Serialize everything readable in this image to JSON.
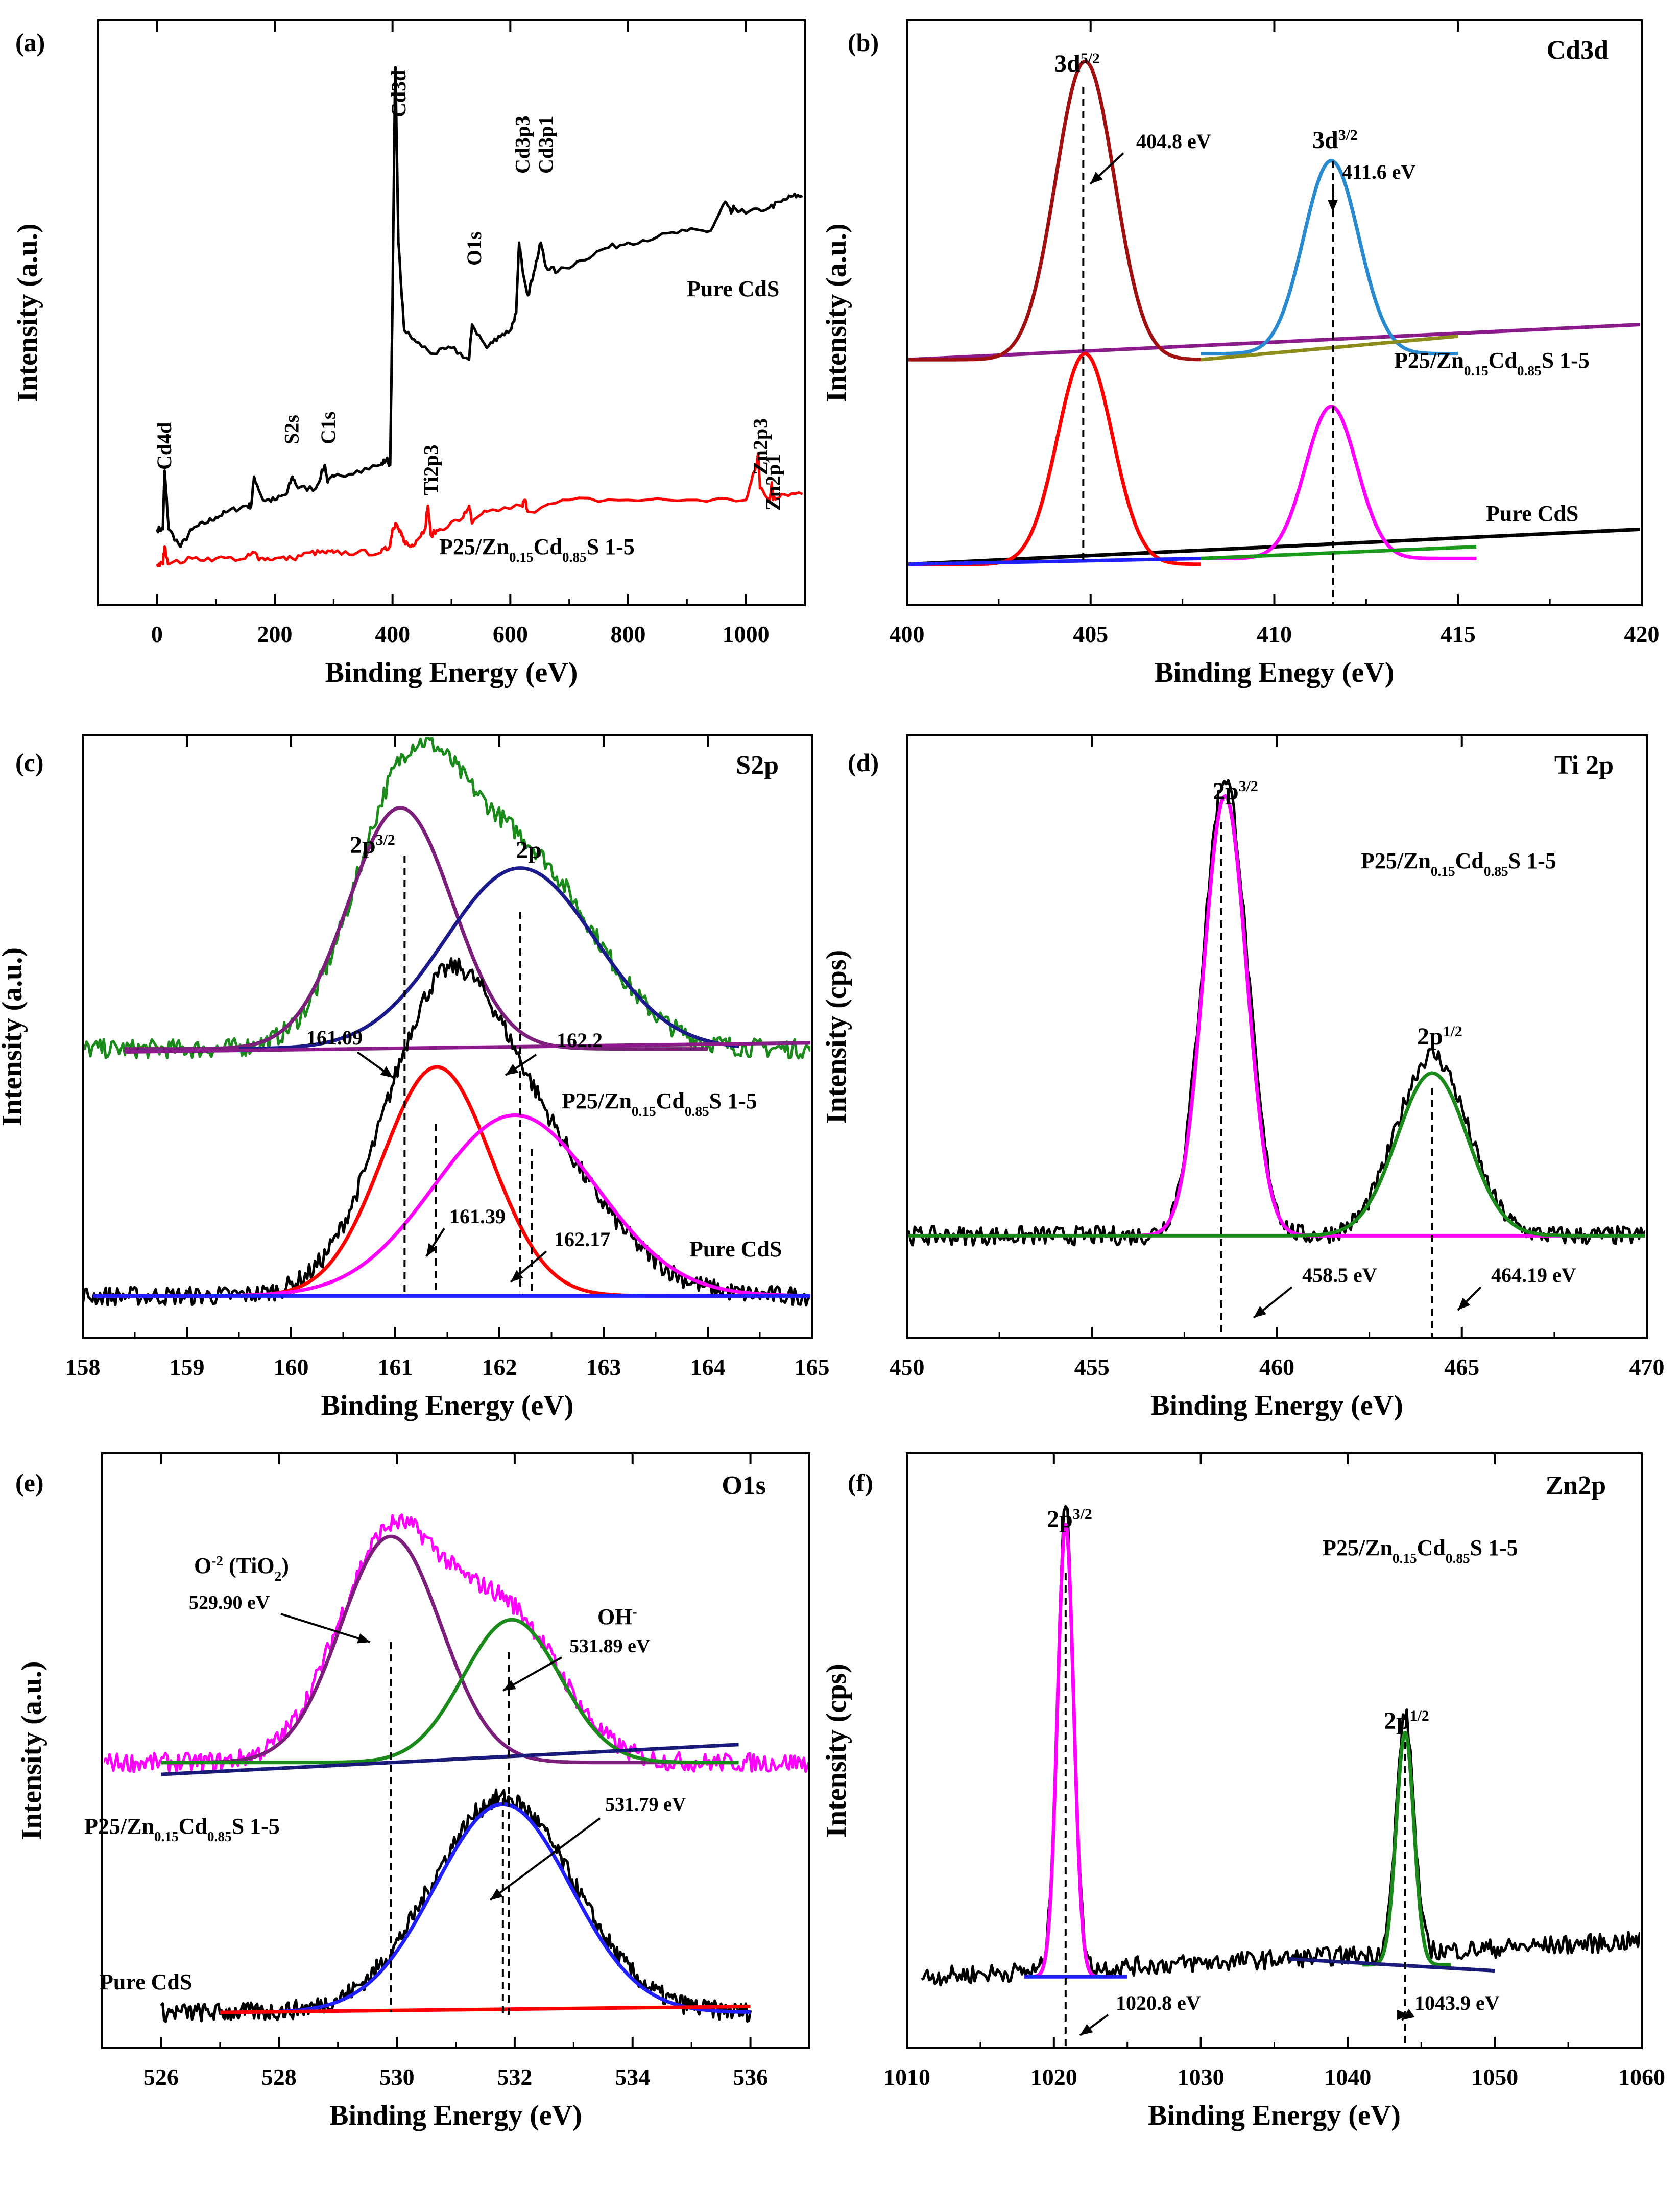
{
  "chart_data": [
    {
      "type": "line",
      "panel_label": "(a)",
      "title": "",
      "xlabel": "Binding Energy (eV)",
      "ylabel": "Intensity (a.u.)",
      "xlim": [
        -100,
        1100
      ],
      "ylim": [
        0,
        100
      ],
      "xticks": [
        "0",
        "200",
        "400",
        "600",
        "800",
        "1000"
      ],
      "xtick_values": [
        0,
        200,
        400,
        600,
        800,
        1000
      ],
      "series": [
        {
          "name": "Pure CdS",
          "color": "#000000",
          "x": [
            0,
            10,
            13,
            20,
            40,
            60,
            80,
            100,
            120,
            150,
            160,
            165,
            180,
            200,
            220,
            230,
            240,
            270,
            285,
            290,
            300,
            340,
            380,
            390,
            396,
            400,
            404,
            405,
            406,
            410,
            415,
            420,
            440,
            470,
            500,
            530,
            535,
            560,
            580,
            600,
            610,
            615,
            620,
            630,
            640,
            652,
            660,
            680,
            720,
            760,
            800,
            850,
            900,
            940,
            965,
            975,
            980,
            1000,
            1040,
            1060,
            1080,
            1096
          ],
          "y": [
            13,
            13,
            23,
            13,
            10,
            13,
            14,
            15,
            16,
            17,
            17,
            22,
            18,
            18,
            19,
            22,
            20,
            20,
            24,
            21,
            22,
            23,
            24,
            25,
            24,
            52,
            88,
            92,
            86,
            62,
            54,
            47,
            45,
            43,
            44,
            42,
            48,
            44,
            46,
            47,
            50,
            62,
            58,
            53,
            57,
            62,
            58,
            57,
            59,
            61,
            62,
            63,
            64,
            64,
            69,
            67,
            68,
            67,
            68,
            69,
            70,
            70
          ]
        },
        {
          "name": "P25/Zn0.15Cd0.85S 1-5",
          "color": "#ff0000",
          "x": [
            0,
            10,
            13,
            20,
            60,
            100,
            150,
            165,
            175,
            200,
            230,
            260,
            285,
            300,
            340,
            380,
            395,
            400,
            405,
            410,
            415,
            420,
            430,
            440,
            455,
            460,
            465,
            480,
            520,
            530,
            535,
            560,
            620,
            625,
            630,
            700,
            800,
            900,
            1000,
            1018,
            1021,
            1024,
            1040,
            1044,
            1046,
            1060,
            1096
          ],
          "y": [
            7,
            7,
            10,
            7,
            8,
            8,
            8,
            9,
            8,
            8,
            8,
            9,
            9,
            9,
            9,
            9,
            10,
            13,
            14,
            13,
            12,
            11,
            10,
            11,
            13,
            17,
            12,
            13,
            15,
            17,
            14,
            16,
            17,
            18,
            16,
            18,
            18,
            18,
            18,
            24,
            26,
            20,
            18,
            21,
            18,
            19,
            19
          ]
        }
      ],
      "annotations": [
        {
          "text": "Cd4d",
          "x": 12
        },
        {
          "text": "S2s",
          "x": 228
        },
        {
          "text": "C1s",
          "x": 290
        },
        {
          "text": "Cd3d",
          "x": 405
        },
        {
          "text": "Ti2p3",
          "x": 460
        },
        {
          "text": "O1s",
          "x": 533
        },
        {
          "text": "Cd3p3",
          "x": 616
        },
        {
          "text": "Cd3p1",
          "x": 652
        },
        {
          "text": "Zn2p3",
          "x": 1021
        },
        {
          "text": "Zn2p1",
          "x": 1044
        }
      ],
      "series_labels": [
        "Pure CdS",
        "P25/Zn",
        "0.15",
        "Cd",
        "0.85",
        "S 1-5"
      ]
    },
    {
      "type": "line",
      "panel_label": "(b)",
      "title": "Cd3d",
      "xlabel": "Binding Enegy (eV)",
      "ylabel": "Intensity (a.u.)",
      "xlim": [
        400,
        420
      ],
      "ylim": [
        0,
        100
      ],
      "xticks": [
        "400",
        "405",
        "410",
        "415",
        "420"
      ],
      "xtick_values": [
        400,
        405,
        410,
        415,
        420
      ],
      "peaks": [
        {
          "label": "3d",
          "label_sup": "5/2",
          "center": 404.8,
          "value_label": "404.8 eV"
        },
        {
          "label": "3d",
          "label_sup": "3/2",
          "center": 411.6,
          "value_label": "411.6 eV"
        }
      ],
      "series_labels": [
        "P25/Zn",
        "0.15",
        "Cd",
        "0.85",
        "S 1-5",
        "Pure CdS"
      ],
      "series": [
        {
          "name": "P25 composite baseline",
          "color": "#8b1a8b",
          "start": 400,
          "end": 420,
          "base_start": 42,
          "base_end": 48
        },
        {
          "name": "P25 composite 3d5/2 fit",
          "color": "#a01010",
          "center": 404.85,
          "height": 51,
          "sigma": 0.8,
          "base": 42,
          "start": 400,
          "end": 408
        },
        {
          "name": "P25 composite 3d3/2 fit",
          "color": "#2a8ad0",
          "center": 411.55,
          "height": 33,
          "sigma": 0.75,
          "base": 43,
          "start": 408,
          "end": 415
        },
        {
          "name": "P25 composite background",
          "color": "#8c8c1a",
          "start": 408,
          "end": 415,
          "base_start": 42,
          "base_end": 46
        },
        {
          "name": "Pure CdS baseline",
          "color": "#000000",
          "start": 400,
          "end": 420,
          "base_start": 7,
          "base_end": 13
        },
        {
          "name": "Pure CdS 3d5/2 fit",
          "color": "#ff0000",
          "center": 404.85,
          "height": 36,
          "sigma": 0.75,
          "base": 7,
          "start": 400,
          "end": 408
        },
        {
          "name": "Pure CdS 3d3/2 fit",
          "color": "#ff00ff",
          "center": 411.55,
          "height": 26,
          "sigma": 0.7,
          "base": 8,
          "start": 408,
          "end": 415.5
        },
        {
          "name": "Pure CdS background",
          "color": "#2020ff",
          "start": 400,
          "end": 408,
          "base_start": 7,
          "base_end": 8
        },
        {
          "name": "Pure CdS background 2",
          "color": "#1a9a1a",
          "start": 408,
          "end": 415.5,
          "base_start": 8,
          "base_end": 10
        }
      ]
    },
    {
      "type": "line",
      "panel_label": "(c)",
      "title": "S2p",
      "xlabel": "Binding Energy (eV)",
      "ylabel": "Intensity (a.u.)",
      "xlim": [
        158,
        165
      ],
      "ylim": [
        0,
        100
      ],
      "xticks": [
        "158",
        "159",
        "160",
        "161",
        "162",
        "163",
        "164",
        "165"
      ],
      "xtick_values": [
        158,
        159,
        160,
        161,
        162,
        163,
        164,
        165
      ],
      "peaks": [
        {
          "label": "2p",
          "label_sup": "3/2",
          "center": 161.09,
          "value_label": "161.09"
        },
        {
          "label": "2p",
          "label_sup": "",
          "center": 162.2,
          "value_label": "162.2"
        },
        {
          "label": "",
          "label_sup": "",
          "center": 161.39,
          "value_label": "161.39"
        },
        {
          "label": "",
          "label_sup": "",
          "center": 162.17,
          "value_label": "162.17"
        }
      ],
      "series_labels": [
        "P25/Zn",
        "0.15",
        "Cd",
        "0.85",
        "S 1-5",
        "Pure CdS"
      ],
      "series": [
        {
          "name": "P25 composite raw",
          "color": "#1a8a1a",
          "noisy": true,
          "start": 158,
          "end": 165,
          "base": 48,
          "peaks": [
            [
              161.1,
              40,
              0.5
            ],
            [
              162.2,
              32,
              0.7
            ]
          ]
        },
        {
          "name": "P25 composite peak 1",
          "color": "#7b1f7b",
          "center": 161.05,
          "height": 40,
          "sigma": 0.5,
          "base": 48,
          "start": 158.4,
          "end": 164
        },
        {
          "name": "P25 composite peak 2",
          "color": "#1a1a8a",
          "center": 162.2,
          "height": 30,
          "sigma": 0.72,
          "base": 48,
          "start": 159.5,
          "end": 164.3
        },
        {
          "name": "P25 composite baseline",
          "color": "#8b1a8b",
          "start": 158.4,
          "end": 165,
          "base_start": 47.5,
          "base_end": 49
        },
        {
          "name": "Pure CdS raw",
          "color": "#000000",
          "noisy": true,
          "start": 158,
          "end": 165,
          "base": 7,
          "peaks": [
            [
              161.4,
              38,
              0.55
            ],
            [
              162.2,
              26,
              0.75
            ]
          ]
        },
        {
          "name": "Pure CdS peak 1",
          "color": "#ff0000",
          "center": 161.4,
          "height": 38,
          "sigma": 0.52,
          "base": 7,
          "start": 158.1,
          "end": 164.5
        },
        {
          "name": "Pure CdS peak 2",
          "color": "#ff00ff",
          "center": 162.15,
          "height": 30,
          "sigma": 0.78,
          "base": 7,
          "start": 158.1,
          "end": 165
        },
        {
          "name": "Pure CdS background",
          "color": "#2020ff",
          "start": 158.1,
          "end": 165,
          "base_start": 7,
          "base_end": 7
        }
      ]
    },
    {
      "type": "line",
      "panel_label": "(d)",
      "title": "Ti 2p",
      "xlabel": "Binding Energy (eV)",
      "ylabel": "Intensity (cps)",
      "xlim": [
        450,
        470
      ],
      "ylim": [
        0,
        100
      ],
      "xticks": [
        "450",
        "455",
        "460",
        "465",
        "470"
      ],
      "xtick_values": [
        450,
        455,
        460,
        465,
        470
      ],
      "sample_label": [
        "P25/Zn",
        "0.15",
        "Cd",
        "0.85",
        "S 1-5"
      ],
      "peaks": [
        {
          "label": "2p",
          "label_sup": "3/2",
          "center": 458.5,
          "value_label": "458.5 eV"
        },
        {
          "label": "2p",
          "label_sup": "1/2",
          "center": 464.19,
          "value_label": "464.19 eV"
        }
      ],
      "series": [
        {
          "name": "Raw data",
          "color": "#000000",
          "noisy": true,
          "start": 450,
          "end": 470,
          "base": 17,
          "peaks": [
            [
              458.6,
              76,
              0.6
            ],
            [
              464.2,
              30,
              0.95
            ]
          ]
        },
        {
          "name": "Ti 2p3/2 fit",
          "color": "#ff00ff",
          "center": 458.6,
          "height": 73,
          "sigma": 0.58,
          "base": 17,
          "start": 456,
          "end": 470
        },
        {
          "name": "Ti 2p1/2 fit",
          "color": "#1a8a1a",
          "center": 464.2,
          "height": 27,
          "sigma": 0.95,
          "base": 17,
          "start": 450,
          "end": 470
        }
      ]
    },
    {
      "type": "line",
      "panel_label": "(e)",
      "title": "O1s",
      "xlabel": "Binding Energy (eV)",
      "ylabel": "Intensity (a.u.)",
      "xlim": [
        525,
        537
      ],
      "ylim": [
        0,
        100
      ],
      "xticks": [
        "526",
        "528",
        "530",
        "532",
        "534",
        "536"
      ],
      "xtick_values": [
        526,
        528,
        530,
        532,
        534,
        536
      ],
      "peaks": [
        {
          "label": "O",
          "label_sup": "-2",
          "label_suffix": "(TiO",
          "label_sub": "2",
          "center": 529.9,
          "value_label": "529.90 eV"
        },
        {
          "label": "OH",
          "label_sup": "-",
          "center": 531.89,
          "value_label": "531.89 eV"
        },
        {
          "label": "",
          "label_sup": "",
          "center": 531.79,
          "value_label": "531.79 eV"
        }
      ],
      "series_labels": [
        "P25/Zn",
        "0.15",
        "Cd",
        "0.85",
        "S 1-5",
        "Pure CdS"
      ],
      "series": [
        {
          "name": "P25 composite raw",
          "color": "#ff00ff",
          "noisy": true,
          "start": 525,
          "end": 537,
          "base": 48,
          "peaks": [
            [
              529.9,
              38,
              0.9
            ],
            [
              531.9,
              24,
              0.9
            ]
          ]
        },
        {
          "name": "O-2 fit",
          "color": "#7b1f7b",
          "center": 529.9,
          "height": 38,
          "sigma": 0.85,
          "base": 48,
          "start": 526,
          "end": 535.8
        },
        {
          "name": "OH- fit",
          "color": "#1a8a1a",
          "center": 531.95,
          "height": 24,
          "sigma": 0.82,
          "base": 48,
          "start": 526,
          "end": 535.8
        },
        {
          "name": "P25 composite baseline",
          "color": "#1a1a7a",
          "start": 526,
          "end": 535.8,
          "base_start": 46,
          "base_end": 51
        },
        {
          "name": "Pure CdS raw",
          "color": "#000000",
          "noisy": true,
          "start": 526,
          "end": 536,
          "base": 6,
          "peaks": [
            [
              531.8,
              36,
              1.2
            ]
          ]
        },
        {
          "name": "Pure CdS fit",
          "color": "#2020ff",
          "center": 531.8,
          "height": 35,
          "sigma": 1.15,
          "base": 6,
          "start": 527,
          "end": 536
        },
        {
          "name": "Pure CdS background",
          "color": "#ff0000",
          "start": 527,
          "end": 536,
          "base_start": 6,
          "base_end": 7
        }
      ]
    },
    {
      "type": "line",
      "panel_label": "(f)",
      "title": "Zn2p",
      "xlabel": "Binding Energy (eV)",
      "ylabel": "Intensity (cps)",
      "xlim": [
        1010,
        1060
      ],
      "ylim": [
        0,
        100
      ],
      "xticks": [
        "1010",
        "1020",
        "1030",
        "1040",
        "1050",
        "1060"
      ],
      "xtick_values": [
        1010,
        1020,
        1030,
        1040,
        1050,
        1060
      ],
      "sample_label": [
        "P25/Zn",
        "0.15",
        "Cd",
        "0.85",
        "S 1-5"
      ],
      "peaks": [
        {
          "label": "2p",
          "label_sup": "3/2",
          "center": 1020.8,
          "value_label": "1020.8 eV"
        },
        {
          "label": "2p",
          "label_sup": "1/2",
          "center": 1043.9,
          "value_label": "1043.9 eV"
        }
      ],
      "series": [
        {
          "name": "Raw data",
          "color": "#000000",
          "noisy": true,
          "start": 1011,
          "end": 1060,
          "base": 12,
          "rise": 6,
          "peaks": [
            [
              1020.8,
              78,
              0.55
            ],
            [
              1043.9,
              40,
              0.6
            ]
          ]
        },
        {
          "name": "Zn 2p3/2 fit",
          "color": "#ff00ff",
          "center": 1020.8,
          "height": 76,
          "sigma": 0.55,
          "base": 12,
          "start": 1018,
          "end": 1024
        },
        {
          "name": "Zn 2p1/2 fit",
          "color": "#1a8a1a",
          "center": 1043.9,
          "height": 39,
          "sigma": 0.6,
          "base": 14,
          "start": 1041,
          "end": 1047
        },
        {
          "name": "Background 1",
          "color": "#2020ff",
          "start": 1018,
          "end": 1025,
          "base_start": 12,
          "base_end": 12
        },
        {
          "name": "Background 2",
          "color": "#1a1a7a",
          "start": 1036,
          "end": 1050,
          "base_start": 15,
          "base_end": 13
        }
      ]
    }
  ]
}
